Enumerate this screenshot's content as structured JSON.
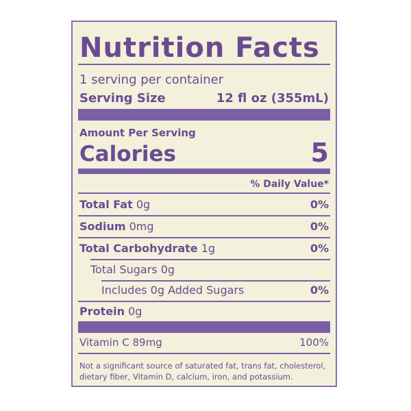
{
  "header": {
    "title": "Nutrition Facts"
  },
  "servings": {
    "per_container": "1 serving per container",
    "size_label": "Serving Size",
    "size_value": "12 fl oz (355mL)"
  },
  "calories": {
    "heading": "Amount Per Serving",
    "label": "Calories",
    "value": "5"
  },
  "daily_value_heading": "% Daily Value*",
  "nutrients": [
    {
      "name": "Total Fat",
      "amount": "0g",
      "dv": "0%"
    },
    {
      "name": "Sodium",
      "amount": "0mg",
      "dv": "0%"
    },
    {
      "name": "Total Carbohydrate",
      "amount": "1g",
      "dv": "0%"
    },
    {
      "name": "Total Sugars",
      "amount": "0g"
    },
    {
      "name": "Includes 0g Added Sugars",
      "dv": "0%"
    },
    {
      "name": "Protein",
      "amount": "0g"
    }
  ],
  "vitamins": [
    {
      "name": "Vitamin C",
      "amount": "89mg",
      "dv": "100%"
    }
  ],
  "footnote": [
    "Not a significant source of saturated fat, trans fat, cholesterol,",
    "dietary fiber, Vitamin D, calcium, iron, and potassium."
  ]
}
